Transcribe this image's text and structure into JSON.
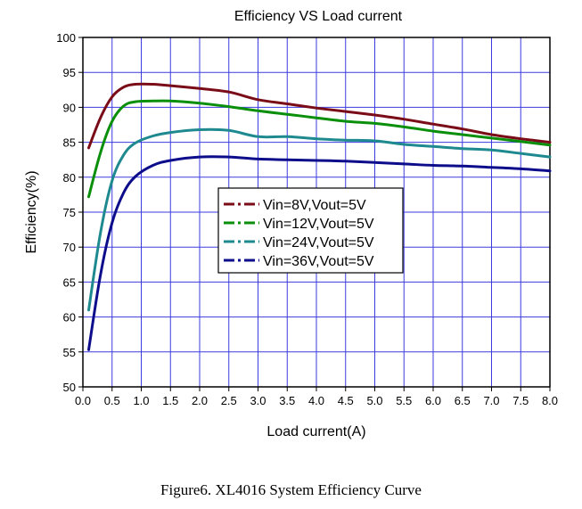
{
  "chart_data": {
    "type": "line",
    "title": "Efficiency VS Load current",
    "xlabel": "Load current(A)",
    "ylabel": "Efficiency(%)",
    "xlim": [
      0,
      8
    ],
    "ylim": [
      50,
      100
    ],
    "x_ticks": [
      "0.0",
      "0.5",
      "1.0",
      "1.5",
      "2.0",
      "2.5",
      "3.0",
      "3.5",
      "4.0",
      "4.5",
      "5.0",
      "5.5",
      "6.0",
      "6.5",
      "7.0",
      "7.5",
      "8.0"
    ],
    "y_ticks": [
      "50",
      "55",
      "60",
      "65",
      "70",
      "75",
      "80",
      "85",
      "90",
      "95",
      "100"
    ],
    "grid": true,
    "legend_position": "center-left",
    "series": [
      {
        "name": "Vin=8V,Vout=5V",
        "color": "#7a0c18",
        "x": [
          0.1,
          0.3,
          0.5,
          0.7,
          0.9,
          1.2,
          1.5,
          2.0,
          2.5,
          3.0,
          3.5,
          4.0,
          4.5,
          5.0,
          5.5,
          6.0,
          6.5,
          7.0,
          7.5,
          8.0
        ],
        "y": [
          84.2,
          88.5,
          91.5,
          92.9,
          93.3,
          93.3,
          93.1,
          92.7,
          92.2,
          91.1,
          90.5,
          89.9,
          89.4,
          88.9,
          88.3,
          87.6,
          86.9,
          86.1,
          85.5,
          85.0
        ]
      },
      {
        "name": "Vin=12V,Vout=5V",
        "color": "#0a8f0a",
        "x": [
          0.1,
          0.3,
          0.5,
          0.7,
          0.9,
          1.2,
          1.5,
          2.0,
          2.5,
          3.0,
          3.5,
          4.0,
          4.5,
          5.0,
          5.5,
          6.0,
          6.5,
          7.0,
          7.5,
          8.0
        ],
        "y": [
          77.2,
          83.5,
          88.0,
          90.2,
          90.8,
          90.9,
          90.9,
          90.6,
          90.1,
          89.5,
          89.0,
          88.5,
          88.0,
          87.7,
          87.2,
          86.6,
          86.1,
          85.6,
          85.1,
          84.6
        ]
      },
      {
        "name": "Vin=24V,Vout=5V",
        "color": "#1e8a8f",
        "x": [
          0.1,
          0.3,
          0.5,
          0.7,
          0.9,
          1.2,
          1.5,
          2.0,
          2.5,
          3.0,
          3.5,
          4.0,
          4.5,
          5.0,
          5.5,
          6.0,
          6.5,
          7.0,
          7.5,
          8.0
        ],
        "y": [
          61.0,
          72.0,
          79.5,
          83.2,
          84.9,
          85.9,
          86.4,
          86.8,
          86.7,
          85.8,
          85.8,
          85.5,
          85.3,
          85.2,
          84.7,
          84.4,
          84.1,
          83.9,
          83.4,
          82.9
        ]
      },
      {
        "name": "Vin=36V,Vout=5V",
        "color": "#0d0d8c",
        "x": [
          0.1,
          0.3,
          0.5,
          0.7,
          0.9,
          1.2,
          1.5,
          2.0,
          2.5,
          3.0,
          3.5,
          4.0,
          4.5,
          5.0,
          5.5,
          6.0,
          6.5,
          7.0,
          7.5,
          8.0
        ],
        "y": [
          55.3,
          66.0,
          73.5,
          77.8,
          80.1,
          81.7,
          82.4,
          82.9,
          82.9,
          82.6,
          82.5,
          82.4,
          82.3,
          82.1,
          81.9,
          81.7,
          81.6,
          81.4,
          81.2,
          80.9
        ]
      }
    ]
  },
  "caption": "Figure6. XL4016 System Efficiency Curve"
}
